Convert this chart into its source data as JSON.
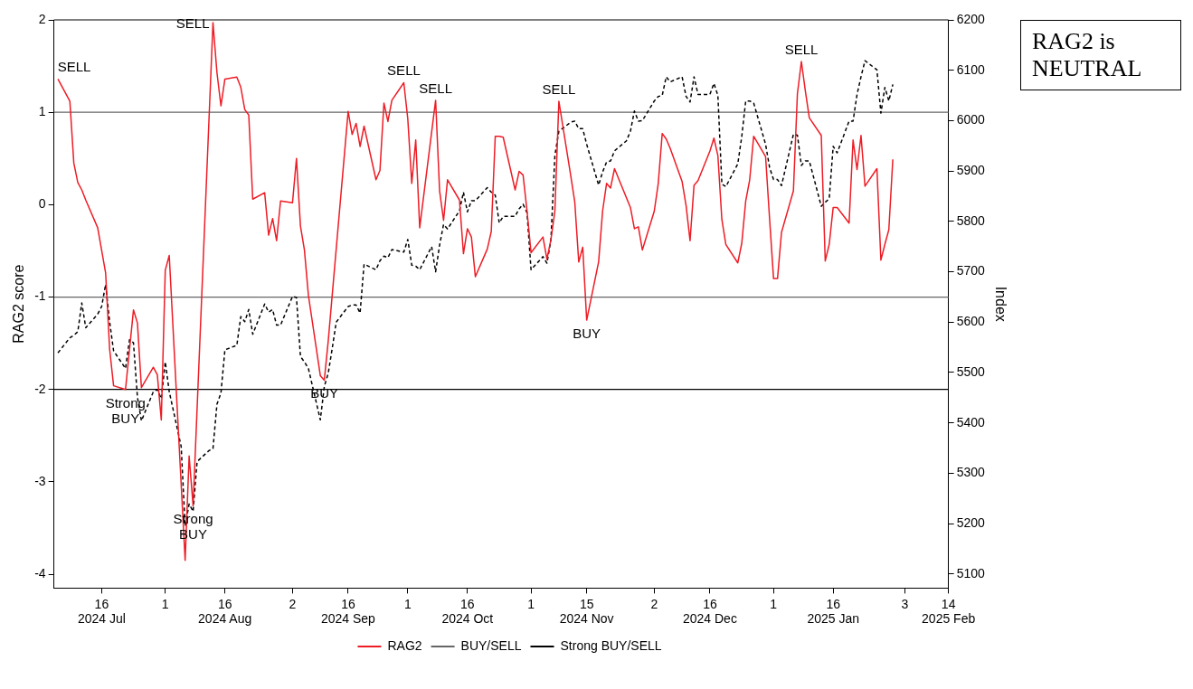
{
  "chart_data": {
    "type": "line",
    "ylabel": "RAG2 score",
    "y2label": "Index",
    "x": [
      "2024-07-05",
      "2024-07-08",
      "2024-07-09",
      "2024-07-10",
      "2024-07-11",
      "2024-07-12",
      "2024-07-15",
      "2024-07-16",
      "2024-07-17",
      "2024-07-18",
      "2024-07-19",
      "2024-07-22",
      "2024-07-23",
      "2024-07-24",
      "2024-07-25",
      "2024-07-26",
      "2024-07-29",
      "2024-07-30",
      "2024-07-31",
      "2024-08-01",
      "2024-08-02",
      "2024-08-05",
      "2024-08-06",
      "2024-08-07",
      "2024-08-08",
      "2024-08-09",
      "2024-08-12",
      "2024-08-13",
      "2024-08-14",
      "2024-08-15",
      "2024-08-16",
      "2024-08-19",
      "2024-08-20",
      "2024-08-21",
      "2024-08-22",
      "2024-08-23",
      "2024-08-26",
      "2024-08-27",
      "2024-08-28",
      "2024-08-29",
      "2024-08-30",
      "2024-09-02",
      "2024-09-03",
      "2024-09-04",
      "2024-09-05",
      "2024-09-06",
      "2024-09-09",
      "2024-09-10",
      "2024-09-11",
      "2024-09-12",
      "2024-09-13",
      "2024-09-16",
      "2024-09-17",
      "2024-09-18",
      "2024-09-19",
      "2024-09-20",
      "2024-09-23",
      "2024-09-24",
      "2024-09-25",
      "2024-09-26",
      "2024-09-27",
      "2024-09-30",
      "2024-10-01",
      "2024-10-02",
      "2024-10-03",
      "2024-10-04",
      "2024-10-07",
      "2024-10-08",
      "2024-10-09",
      "2024-10-10",
      "2024-10-11",
      "2024-10-14",
      "2024-10-15",
      "2024-10-16",
      "2024-10-17",
      "2024-10-18",
      "2024-10-21",
      "2024-10-22",
      "2024-10-23",
      "2024-10-24",
      "2024-10-25",
      "2024-10-28",
      "2024-10-29",
      "2024-10-30",
      "2024-10-31",
      "2024-11-01",
      "2024-11-04",
      "2024-11-05",
      "2024-11-06",
      "2024-11-07",
      "2024-11-08",
      "2024-11-11",
      "2024-11-12",
      "2024-11-13",
      "2024-11-14",
      "2024-11-15",
      "2024-11-18",
      "2024-11-19",
      "2024-11-20",
      "2024-11-21",
      "2024-11-22",
      "2024-11-25",
      "2024-11-26",
      "2024-11-27",
      "2024-11-28",
      "2024-11-29",
      "2024-12-02",
      "2024-12-03",
      "2024-12-04",
      "2024-12-05",
      "2024-12-06",
      "2024-12-09",
      "2024-12-10",
      "2024-12-11",
      "2024-12-12",
      "2024-12-13",
      "2024-12-16",
      "2024-12-17",
      "2024-12-18",
      "2024-12-19",
      "2024-12-20",
      "2024-12-23",
      "2024-12-24",
      "2024-12-25",
      "2024-12-26",
      "2024-12-27",
      "2024-12-30",
      "2024-12-31",
      "2025-01-01",
      "2025-01-02",
      "2025-01-03",
      "2025-01-06",
      "2025-01-07",
      "2025-01-08",
      "2025-01-09",
      "2025-01-10",
      "2025-01-13",
      "2025-01-14",
      "2025-01-15",
      "2025-01-16",
      "2025-01-17",
      "2025-01-20",
      "2025-01-21",
      "2025-01-22",
      "2025-01-23",
      "2025-01-24",
      "2025-01-27",
      "2025-01-28",
      "2025-01-29",
      "2025-01-30",
      "2025-01-31"
    ],
    "series": [
      {
        "name": "RAG2",
        "color": "#ee1c25",
        "line_style": "solid",
        "x": [
          "2024-07-05",
          "2024-07-08",
          "2024-07-09",
          "2024-07-10",
          "2024-07-11",
          "2024-07-12",
          "2024-07-15",
          "2024-07-17",
          "2024-07-18",
          "2024-07-19",
          "2024-07-22",
          "2024-07-24",
          "2024-07-25",
          "2024-07-26",
          "2024-07-29",
          "2024-07-30",
          "2024-07-31",
          "2024-08-01",
          "2024-08-02",
          "2024-08-06",
          "2024-08-07",
          "2024-08-08",
          "2024-08-13",
          "2024-08-14",
          "2024-08-15",
          "2024-08-16",
          "2024-08-19",
          "2024-08-20",
          "2024-08-21",
          "2024-08-22",
          "2024-08-23",
          "2024-08-26",
          "2024-08-27",
          "2024-08-28",
          "2024-08-29",
          "2024-08-30",
          "2024-09-02",
          "2024-09-03",
          "2024-09-04",
          "2024-09-05",
          "2024-09-06",
          "2024-09-09",
          "2024-09-10",
          "2024-09-11",
          "2024-09-16",
          "2024-09-17",
          "2024-09-18",
          "2024-09-19",
          "2024-09-20",
          "2024-09-23",
          "2024-09-24",
          "2024-09-25",
          "2024-09-26",
          "2024-09-27",
          "2024-09-30",
          "2024-10-01",
          "2024-10-02",
          "2024-10-03",
          "2024-10-04",
          "2024-10-08",
          "2024-10-09",
          "2024-10-10",
          "2024-10-11",
          "2024-10-14",
          "2024-10-15",
          "2024-10-16",
          "2024-10-17",
          "2024-10-18",
          "2024-10-21",
          "2024-10-22",
          "2024-10-23",
          "2024-10-24",
          "2024-10-25",
          "2024-10-28",
          "2024-10-29",
          "2024-10-30",
          "2024-10-31",
          "2024-11-01",
          "2024-11-04",
          "2024-11-05",
          "2024-11-06",
          "2024-11-07",
          "2024-11-08",
          "2024-11-11",
          "2024-11-12",
          "2024-11-13",
          "2024-11-14",
          "2024-11-15",
          "2024-11-18",
          "2024-11-19",
          "2024-11-20",
          "2024-11-21",
          "2024-11-22",
          "2024-11-26",
          "2024-11-27",
          "2024-11-28",
          "2024-11-29",
          "2024-12-02",
          "2024-12-03",
          "2024-12-04",
          "2024-12-05",
          "2024-12-06",
          "2024-12-09",
          "2024-12-10",
          "2024-12-11",
          "2024-12-12",
          "2024-12-13",
          "2024-12-16",
          "2024-12-17",
          "2024-12-18",
          "2024-12-19",
          "2024-12-20",
          "2024-12-23",
          "2024-12-24",
          "2024-12-25",
          "2024-12-26",
          "2024-12-27",
          "2024-12-30",
          "2024-12-31",
          "2025-01-01",
          "2025-01-02",
          "2025-01-03",
          "2025-01-06",
          "2025-01-07",
          "2025-01-08",
          "2025-01-09",
          "2025-01-10",
          "2025-01-13",
          "2025-01-14",
          "2025-01-15",
          "2025-01-16",
          "2025-01-17",
          "2025-01-20",
          "2025-01-21",
          "2025-01-22",
          "2025-01-23",
          "2025-01-24",
          "2025-01-27",
          "2025-01-28",
          "2025-01-29",
          "2025-01-30",
          "2025-01-31"
        ],
        "values": [
          1.36,
          1.12,
          0.45,
          0.24,
          0.16,
          0.05,
          -0.25,
          -0.74,
          -1.56,
          -1.96,
          -2.0,
          -1.14,
          -1.28,
          -1.98,
          -1.76,
          -1.84,
          -2.33,
          -0.71,
          -0.55,
          -3.85,
          -2.72,
          -3.26,
          1.97,
          1.43,
          1.07,
          1.36,
          1.38,
          1.27,
          1.03,
          0.97,
          0.06,
          0.13,
          -0.33,
          -0.15,
          -0.39,
          0.04,
          0.02,
          0.5,
          -0.23,
          -0.49,
          -0.98,
          -1.85,
          -1.9,
          -1.47,
          1.01,
          0.76,
          0.88,
          0.63,
          0.85,
          0.27,
          0.37,
          1.1,
          0.9,
          1.13,
          1.32,
          0.93,
          0.23,
          0.7,
          -0.25,
          1.13,
          0.15,
          -0.17,
          0.27,
          0.05,
          -0.53,
          -0.26,
          -0.35,
          -0.78,
          -0.48,
          -0.29,
          0.74,
          0.74,
          0.73,
          0.16,
          0.36,
          0.32,
          -0.07,
          -0.52,
          -0.35,
          -0.59,
          -0.38,
          -0.07,
          1.12,
          0.31,
          0.03,
          -0.62,
          -0.46,
          -1.25,
          -0.62,
          -0.07,
          0.23,
          0.18,
          0.39,
          -0.03,
          -0.26,
          -0.24,
          -0.49,
          -0.07,
          0.23,
          0.77,
          0.71,
          0.61,
          0.25,
          -0.01,
          -0.39,
          0.21,
          0.26,
          0.58,
          0.72,
          0.53,
          -0.16,
          -0.43,
          -0.63,
          -0.42,
          0.04,
          0.27,
          0.74,
          0.52,
          -0.15,
          -0.8,
          -0.8,
          -0.3,
          0.15,
          1.2,
          1.55,
          1.23,
          0.94,
          0.75,
          -0.61,
          -0.43,
          -0.03,
          -0.03,
          -0.2,
          0.7,
          0.38,
          0.75,
          0.2,
          0.39,
          -0.6,
          -0.43,
          -0.27,
          0.49
        ]
      },
      {
        "color": "#000000",
        "line_style": "dashed",
        "axis": "y2",
        "values": [
          5539,
          5569,
          5574,
          5581,
          5638,
          5589,
          5616,
          5631,
          5675,
          5601,
          5543,
          5508,
          5565,
          5559,
          5451,
          5404,
          5462,
          5466,
          5448,
          5521,
          5462,
          5353,
          5195,
          5239,
          5224,
          5323,
          5345,
          5349,
          5437,
          5459,
          5545,
          5554,
          5611,
          5601,
          5625,
          5576,
          5636,
          5620,
          5625,
          5594,
          5594,
          5651,
          5649,
          5532,
          5521,
          5508,
          5406,
          5472,
          5499,
          5548,
          5600,
          5631,
          5634,
          5634,
          5618,
          5715,
          5704,
          5722,
          5731,
          5728,
          5744,
          5739,
          5764,
          5713,
          5711,
          5704,
          5750,
          5700,
          5753,
          5794,
          5785,
          5821,
          5858,
          5819,
          5841,
          5841,
          5867,
          5858,
          5852,
          5797,
          5810,
          5810,
          5825,
          5834,
          5817,
          5704,
          5730,
          5717,
          5763,
          5931,
          5979,
          5997,
          5999,
          5984,
          5984,
          5953,
          5872,
          5898,
          5918,
          5920,
          5940,
          5960,
          5979,
          6019,
          5999,
          6000,
          6039,
          6048,
          6050,
          6087,
          6077,
          6087,
          6048,
          6037,
          6087,
          6052,
          6052,
          6074,
          6050,
          5874,
          5869,
          5914,
          5968,
          6039,
          6039,
          6035,
          5953,
          5907,
          5883,
          5883,
          5871,
          5973,
          5971,
          5911,
          5920,
          5920,
          5830,
          5838,
          5845,
          5949,
          5936,
          5999,
          5999,
          6052,
          6087,
          6119,
          6101,
          6015,
          6066,
          6039,
          6072
        ]
      }
    ],
    "xlim": [
      "2024-07-04",
      "2025-02-14"
    ],
    "xticks": [
      {
        "value": "2024-07-16",
        "label": "16\n2024 Jul"
      },
      {
        "value": "2024-08-01",
        "label": "1"
      },
      {
        "value": "2024-08-16",
        "label": "16\n2024 Aug"
      },
      {
        "value": "2024-09-02",
        "label": "2"
      },
      {
        "value": "2024-09-16",
        "label": "16\n2024 Sep"
      },
      {
        "value": "2024-10-01",
        "label": "1"
      },
      {
        "value": "2024-10-16",
        "label": "16\n2024 Oct"
      },
      {
        "value": "2024-11-01",
        "label": "1"
      },
      {
        "value": "2024-11-15",
        "label": "15\n2024 Nov"
      },
      {
        "value": "2024-12-02",
        "label": "2"
      },
      {
        "value": "2024-12-16",
        "label": "16\n2024 Dec"
      },
      {
        "value": "2025-01-01",
        "label": "1"
      },
      {
        "value": "2025-01-16",
        "label": "16\n2025 Jan"
      },
      {
        "value": "2025-02-03",
        "label": "3"
      },
      {
        "value": "2025-02-14",
        "label": "14\n2025 Feb"
      }
    ],
    "ylim": [
      -4.15,
      2
    ],
    "yticks": [
      -4,
      -3,
      -2,
      -1,
      0,
      1,
      2
    ],
    "y2lim": [
      5072,
      6200
    ],
    "y2ticks": [
      5100,
      5200,
      5300,
      5400,
      5500,
      5600,
      5700,
      5800,
      5900,
      6000,
      6100,
      6200
    ],
    "ref_lines": [
      {
        "axis": "y",
        "value": 1,
        "label": "BUY/SELL",
        "color": "#666666"
      },
      {
        "axis": "y",
        "value": -1,
        "color": "#666666"
      },
      {
        "axis": "y",
        "value": 2,
        "label": "Strong BUY/SELL",
        "color": "#000000"
      },
      {
        "axis": "y",
        "value": -2,
        "color": "#000000"
      }
    ],
    "annotations": [
      "RAG2 is NEUTRAL",
      {
        "text": "SELL",
        "x": "2024-07-05",
        "y": 1.36
      },
      {
        "text": "Strong BUY",
        "x": "2024-07-22",
        "y": -2.0
      },
      {
        "text": "Strong BUY",
        "x": "2024-08-08",
        "y": -3.26
      },
      {
        "text": "SELL",
        "x": "2024-08-13",
        "y": 1.97
      },
      {
        "text": "BUY",
        "x": "2024-09-10",
        "y": -1.9
      },
      {
        "text": "SELL",
        "x": "2024-09-30",
        "y": 1.32
      },
      {
        "text": "SELL",
        "x": "2024-10-08",
        "y": 1.13
      },
      {
        "text": "SELL",
        "x": "2024-11-08",
        "y": 1.12
      },
      {
        "text": "BUY",
        "x": "2024-11-15",
        "y": -1.25
      },
      {
        "text": "SELL",
        "x": "2025-01-08",
        "y": 1.55
      }
    ],
    "legend": "bottom",
    "marker": "none"
  }
}
